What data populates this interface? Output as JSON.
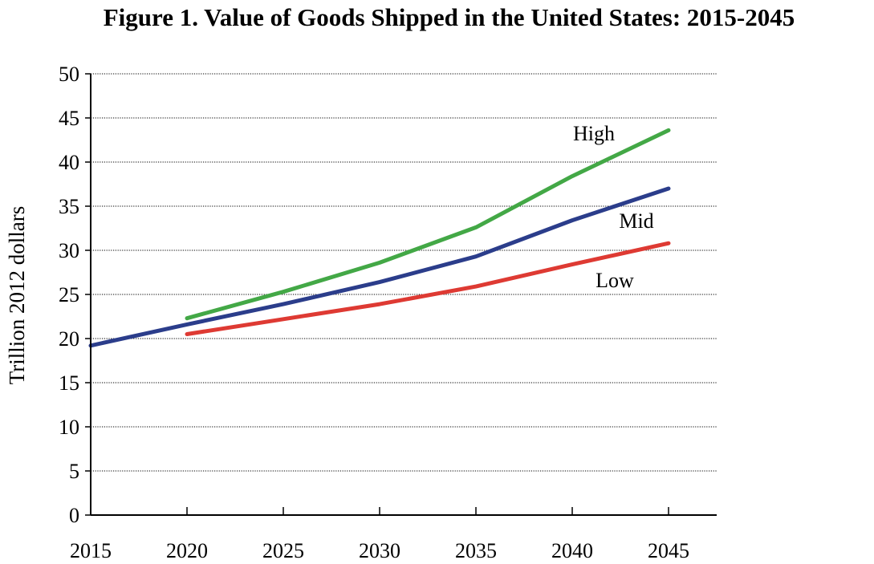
{
  "chart_data": {
    "type": "line",
    "title": "Figure 1. Value of Goods Shipped in the United States: 2015-2045",
    "xlabel": "",
    "ylabel": "Trillion 2012 dollars",
    "x": [
      2015,
      2020,
      2025,
      2030,
      2035,
      2040,
      2045
    ],
    "xlim": [
      2015,
      2047.5
    ],
    "ylim": [
      0,
      50
    ],
    "yticks": [
      0,
      5,
      10,
      15,
      20,
      25,
      30,
      35,
      40,
      45,
      50
    ],
    "grid": true,
    "series": [
      {
        "name": "High",
        "color": "#43a846",
        "points": [
          [
            2020,
            22.3
          ],
          [
            2025,
            25.3
          ],
          [
            2030,
            28.6
          ],
          [
            2035,
            32.6
          ],
          [
            2040,
            38.4
          ],
          [
            2045,
            43.6
          ]
        ]
      },
      {
        "name": "Mid",
        "color": "#2b3d8b",
        "points": [
          [
            2015,
            19.2
          ],
          [
            2020,
            21.6
          ],
          [
            2025,
            23.9
          ],
          [
            2030,
            26.4
          ],
          [
            2035,
            29.3
          ],
          [
            2040,
            33.4
          ],
          [
            2045,
            37.0
          ]
        ]
      },
      {
        "name": "Low",
        "color": "#de3a33",
        "points": [
          [
            2020,
            20.5
          ],
          [
            2025,
            22.2
          ],
          [
            2030,
            23.9
          ],
          [
            2035,
            25.9
          ],
          [
            2040,
            28.4
          ],
          [
            2045,
            30.8
          ]
        ]
      }
    ],
    "annotations": [
      {
        "text": "High",
        "series": "High"
      },
      {
        "text": "Mid",
        "series": "Mid"
      },
      {
        "text": "Low",
        "series": "Low"
      }
    ]
  }
}
